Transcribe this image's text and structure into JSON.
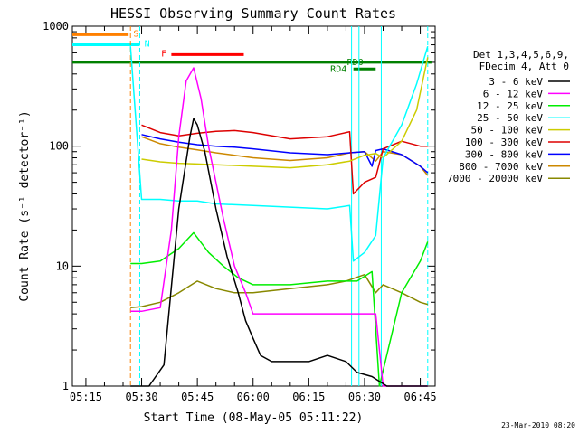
{
  "chart_data": {
    "type": "line",
    "title": "HESSI Observing Summary Count Rates",
    "xlabel": "Start Time (08-May-05 05:11:22)",
    "ylabel": "Count Rate (s⁻¹ detector⁻¹)",
    "y_scale": "log",
    "ylim": [
      1,
      1000
    ],
    "y_ticks": [
      {
        "value": 1,
        "label": "1"
      },
      {
        "value": 10,
        "label": "10"
      },
      {
        "value": 100,
        "label": "100"
      },
      {
        "value": 1000,
        "label": "1000"
      }
    ],
    "xlim": [
      "05:11:22",
      "06:49:00"
    ],
    "x_ticks": [
      "05:15",
      "05:30",
      "05:45",
      "06:00",
      "06:15",
      "06:30",
      "06:45"
    ],
    "grid": false,
    "legend_position": "right",
    "legend_header": [
      "Det 1,3,4,5,6,9,",
      "FDecim 4, Att 0"
    ],
    "timestamp": "23-Mar-2010 08:20",
    "series": [
      {
        "name": "3 - 6 keV",
        "color": "#000000",
        "x": [
          "05:27",
          "05:32",
          "05:36",
          "05:40",
          "05:43",
          "05:44",
          "05:45",
          "05:47",
          "05:50",
          "05:53",
          "05:56",
          "05:58",
          "06:00",
          "06:02",
          "06:05",
          "06:10",
          "06:15",
          "06:20",
          "06:25",
          "06:28",
          "06:32",
          "06:36",
          "06:40",
          "06:44",
          "06:47"
        ],
        "values": [
          1.0,
          1.0,
          1.5,
          30,
          120,
          170,
          150,
          90,
          30,
          12,
          6,
          3.5,
          2.5,
          1.8,
          1.6,
          1.6,
          1.6,
          1.8,
          1.6,
          1.3,
          1.2,
          1.0,
          1.0,
          1.0,
          1.0
        ]
      },
      {
        "name": "6 - 12 keV",
        "color": "#ff00ff",
        "x": [
          "05:27",
          "05:30",
          "05:35",
          "05:38",
          "05:40",
          "05:42",
          "05:44",
          "05:46",
          "05:48",
          "05:52",
          "05:55",
          "05:58",
          "06:00",
          "06:10",
          "06:20",
          "06:28",
          "06:33",
          "06:35",
          "06:40",
          "06:47"
        ],
        "values": [
          4.2,
          4.2,
          4.5,
          20,
          120,
          350,
          450,
          250,
          100,
          25,
          10,
          6,
          4,
          4,
          4,
          4,
          4,
          1.0,
          1.0,
          1.0
        ]
      },
      {
        "name": "12 - 25 keV",
        "color": "#00ee00",
        "x": [
          "05:27",
          "05:30",
          "05:35",
          "05:40",
          "05:44",
          "05:48",
          "05:52",
          "05:56",
          "06:00",
          "06:10",
          "06:20",
          "06:28",
          "06:32",
          "06:34",
          "06:40",
          "06:45",
          "06:47"
        ],
        "values": [
          10.5,
          10.5,
          11,
          14,
          19,
          13,
          10,
          8,
          7,
          7,
          7.5,
          7.5,
          9,
          1.0,
          6,
          11,
          16
        ]
      },
      {
        "name": "25 - 50 keV",
        "color": "#00ffff",
        "x": [
          "05:27",
          "05:30",
          "05:35",
          "05:40",
          "05:45",
          "05:50",
          "06:00",
          "06:10",
          "06:20",
          "06:26",
          "06:27",
          "06:30",
          "06:33",
          "06:35",
          "06:40",
          "06:44",
          "06:47"
        ],
        "values": [
          680,
          36,
          36,
          35,
          35,
          33,
          32,
          31,
          30,
          32,
          11,
          13,
          18,
          80,
          150,
          330,
          680
        ]
      },
      {
        "name": "50 - 100 keV",
        "color": "#cccc00",
        "x": [
          "05:30",
          "05:35",
          "05:40",
          "05:45",
          "05:50",
          "05:55",
          "06:00",
          "06:10",
          "06:20",
          "06:26",
          "06:30",
          "06:33",
          "06:35",
          "06:40",
          "06:44",
          "06:47"
        ],
        "values": [
          78,
          74,
          72,
          71,
          70,
          69,
          68,
          66,
          70,
          75,
          84,
          87,
          80,
          110,
          200,
          550
        ]
      },
      {
        "name": "100 - 300 keV",
        "color": "#dd0000",
        "x": [
          "05:30",
          "05:35",
          "05:40",
          "05:45",
          "05:50",
          "05:55",
          "06:00",
          "06:10",
          "06:20",
          "06:26",
          "06:27",
          "06:30",
          "06:33",
          "06:35",
          "06:40",
          "06:45",
          "06:47"
        ],
        "values": [
          150,
          130,
          122,
          128,
          133,
          135,
          130,
          115,
          120,
          132,
          40,
          50,
          55,
          95,
          110,
          100,
          100
        ]
      },
      {
        "name": "300 - 800 keV",
        "color": "#0000ff",
        "x": [
          "05:30",
          "05:35",
          "05:40",
          "05:45",
          "05:50",
          "05:55",
          "06:00",
          "06:10",
          "06:20",
          "06:26",
          "06:30",
          "06:32",
          "06:33",
          "06:35",
          "06:40",
          "06:45",
          "06:47"
        ],
        "values": [
          125,
          115,
          108,
          103,
          100,
          98,
          95,
          88,
          85,
          88,
          90,
          68,
          92,
          95,
          85,
          68,
          60
        ]
      },
      {
        "name": "800 - 7000 keV",
        "color": "#cc8800",
        "x": [
          "05:30",
          "05:35",
          "05:40",
          "05:45",
          "05:50",
          "05:55",
          "06:00",
          "06:10",
          "06:20",
          "06:26",
          "06:30",
          "06:33",
          "06:35",
          "06:40",
          "06:45",
          "06:47"
        ],
        "values": [
          120,
          105,
          98,
          93,
          88,
          84,
          80,
          76,
          80,
          88,
          90,
          75,
          90,
          85,
          68,
          57
        ]
      },
      {
        "name": "7000 - 20000 keV",
        "color": "#888800",
        "x": [
          "05:27",
          "05:30",
          "05:35",
          "05:40",
          "05:45",
          "05:50",
          "05:55",
          "06:00",
          "06:10",
          "06:20",
          "06:25",
          "06:30",
          "06:33",
          "06:35",
          "06:40",
          "06:45",
          "06:47"
        ],
        "values": [
          4.5,
          4.6,
          5,
          6,
          7.5,
          6.5,
          6,
          6,
          6.5,
          7,
          7.5,
          8.5,
          6,
          7,
          6,
          5,
          4.8
        ]
      }
    ],
    "flags": [
      {
        "label": "S",
        "color": "#ff8000",
        "start": "05:11:22",
        "end": "05:26:30",
        "label_at": "05:28:30",
        "level": 850
      },
      {
        "label": "N",
        "color": "#00ffff",
        "start": "05:11:22",
        "end": "05:29:30",
        "label_at": "05:31:30",
        "level": 700
      },
      {
        "label": "F",
        "color": "#ff0000",
        "start": "05:38:00",
        "end": "05:57:30",
        "label_at": "05:36:00",
        "level": 580
      },
      {
        "label": "RD0",
        "color": "#008000",
        "start": "05:11:22",
        "end": "06:48:00",
        "label_at": "06:27:30",
        "level": 500
      },
      {
        "label": "RD4",
        "color": "#008000",
        "start": "06:27:00",
        "end": "06:33:00",
        "label_at": "06:23:00",
        "level": 440
      }
    ],
    "vertical_markers": [
      {
        "time": "05:27:00",
        "color": "#ff8000",
        "style": "dashed"
      },
      {
        "time": "05:29:30",
        "color": "#00ffff",
        "style": "dashed"
      },
      {
        "time": "06:26:30",
        "color": "#00ffff",
        "style": "solid"
      },
      {
        "time": "06:28:30",
        "color": "#00ffff",
        "style": "solid"
      },
      {
        "time": "06:34:30",
        "color": "#00ffff",
        "style": "solid"
      },
      {
        "time": "06:47:00",
        "color": "#00ffff",
        "style": "dashed"
      }
    ]
  }
}
